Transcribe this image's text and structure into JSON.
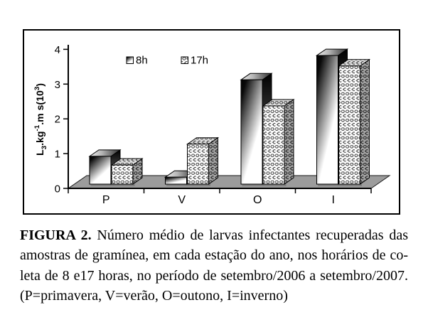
{
  "figure": {
    "caption": {
      "bold_label": "FIGURA 2.",
      "lines": [
        "Número médio de larvas infectantes recuperadas das",
        "amostras de gramínea, em cada estação do ano, nos horários de co-",
        "leta de 8 e17 horas, no período de setembro/2006 a setembro/2007.",
        "(P=primavera, V=verão, O=outono, I=inverno)"
      ]
    }
  },
  "chart_data": {
    "type": "bar",
    "style": "pseudo-3d-column",
    "categories": [
      "P",
      "V",
      "O",
      "I"
    ],
    "series": [
      {
        "name": "8h",
        "fill": "dark-gradient",
        "values": [
          0.8,
          0.2,
          3.0,
          3.7
        ]
      },
      {
        "name": "17h",
        "fill": "bubble-pattern",
        "values": [
          0.55,
          1.15,
          2.25,
          3.4
        ]
      }
    ],
    "ylabel_text": "L3.kg-1.m s(103)",
    "ylabel_parts": [
      [
        "t",
        "L"
      ],
      [
        "sub",
        "3"
      ],
      [
        "t",
        ".kg"
      ],
      [
        "sup",
        "-1"
      ],
      [
        "t",
        ".m s(10"
      ],
      [
        "sup",
        "3"
      ],
      [
        "t",
        ")"
      ]
    ],
    "yticks": [
      "4",
      "3",
      "2",
      "1",
      "0"
    ],
    "ylim": [
      0,
      4
    ],
    "legend_position": "top-inside",
    "grid": false,
    "colors": {
      "floor": "#9c9c9c",
      "axis": "#000000"
    }
  }
}
